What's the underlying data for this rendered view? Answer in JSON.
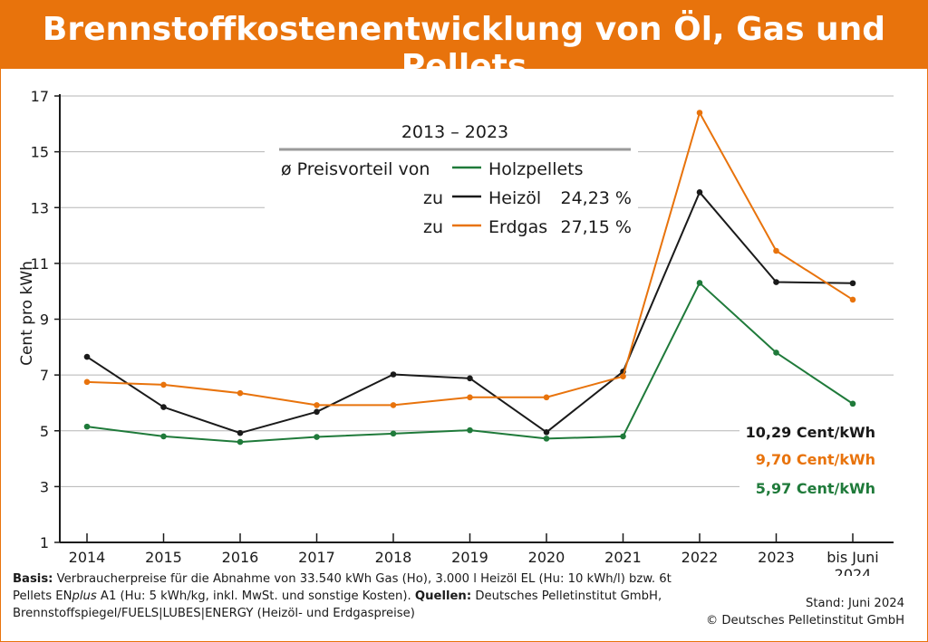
{
  "header": {
    "title": "Brennstoffkostenentwicklung von Öl, Gas und Pellets"
  },
  "colors": {
    "accent": "#e8730c",
    "oil": "#1a1a1a",
    "gas": "#e8730c",
    "pellets": "#1f7a3a"
  },
  "chart_data": {
    "type": "line",
    "ylabel": "Cent pro kWh",
    "ylim": [
      1,
      17
    ],
    "yticks": [
      1,
      3,
      5,
      7,
      9,
      11,
      13,
      15,
      17
    ],
    "x": [
      "2014",
      "2015",
      "2016",
      "2017",
      "2018",
      "2019",
      "2020",
      "2021",
      "2022",
      "2023",
      "bis Juni 2024"
    ],
    "x_tick_lines": [
      [
        "2014"
      ],
      [
        "2015"
      ],
      [
        "2016"
      ],
      [
        "2017"
      ],
      [
        "2018"
      ],
      [
        "2019"
      ],
      [
        "2020"
      ],
      [
        "2021"
      ],
      [
        "2022"
      ],
      [
        "2023"
      ],
      [
        "bis Juni",
        "2024"
      ]
    ],
    "grid": true,
    "series": [
      {
        "name": "Heizöl",
        "color": "#1a1a1a",
        "values": [
          7.65,
          5.85,
          4.92,
          5.68,
          7.02,
          6.88,
          4.95,
          7.12,
          13.55,
          10.33,
          10.29
        ]
      },
      {
        "name": "Erdgas",
        "color": "#e8730c",
        "values": [
          6.75,
          6.65,
          6.35,
          5.92,
          5.92,
          6.2,
          6.2,
          6.95,
          16.4,
          11.45,
          9.7
        ]
      },
      {
        "name": "Holzpellets",
        "color": "#1f7a3a",
        "values": [
          5.15,
          4.8,
          4.6,
          4.78,
          4.9,
          5.02,
          4.72,
          4.8,
          10.3,
          7.8,
          5.97
        ]
      }
    ],
    "legend": {
      "period": "2013 – 2023",
      "prefix": "ø Preisvorteil von",
      "base": "Holzpellets",
      "zu": "zu",
      "items": [
        {
          "name": "Heizöl",
          "advantage": "24,23 %"
        },
        {
          "name": "Erdgas",
          "advantage": "27,15 %"
        }
      ]
    },
    "end_labels": [
      {
        "text": "10,29 Cent/kWh",
        "color": "#1a1a1a"
      },
      {
        "text": "9,70 Cent/kWh",
        "color": "#e8730c"
      },
      {
        "text": "5,97 Cent/kWh",
        "color": "#1f7a3a"
      }
    ]
  },
  "footer": {
    "basis_label": "Basis:",
    "basis_text_1": "Verbraucherpreise für die Abnahme von 33.540 kWh Gas (Ho), 3.000 l Heizöl EL (Hu: 10 kWh/l) bzw. 6t",
    "basis_text_2a": "Pellets EN",
    "basis_text_2b": "plus",
    "basis_text_2c": " A1 (Hu: 5 kWh/kg, inkl. MwSt. und sonstige Kosten).",
    "quellen_label": "Quellen:",
    "quellen_text_1": "Deutsches Pelletinstitut GmbH,",
    "quellen_text_2": "Brennstoffspiegel/FUELS|LUBES|ENERGY (Heizöl- und Erdgaspreise)",
    "stand": "Stand: Juni 2024",
    "copyright": "© Deutsches Pelletinstitut GmbH"
  }
}
